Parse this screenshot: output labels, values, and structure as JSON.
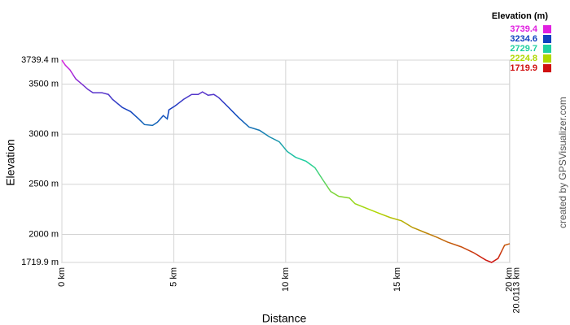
{
  "chart_data": {
    "type": "line",
    "x_label": "Distance",
    "y_label": "Elevation",
    "credit": "created by GPSVisualizer.com",
    "xlim": [
      0,
      20.0113
    ],
    "xticks": [
      {
        "value": 0,
        "label": "0 km"
      },
      {
        "value": 5,
        "label": "5 km"
      },
      {
        "value": 10,
        "label": "10 km"
      },
      {
        "value": 15,
        "label": "15 km"
      },
      {
        "value": 20,
        "label": "20 km"
      },
      {
        "value": 20.0113,
        "label": "20.0113 km"
      }
    ],
    "ylim": [
      1719.9,
      3739.4
    ],
    "yticks": [
      {
        "value": 1719.9,
        "label": "1719.9 m"
      },
      {
        "value": 2000,
        "label": "2000 m"
      },
      {
        "value": 2500,
        "label": "2500 m"
      },
      {
        "value": 3000,
        "label": "3000 m"
      },
      {
        "value": 3500,
        "label": "3500 m"
      },
      {
        "value": 3739.4,
        "label": "3739.4 m"
      }
    ],
    "grid": true,
    "legend": {
      "title": "Elevation (m)",
      "position": "top-right",
      "entries": [
        {
          "label": 3739.4,
          "color": "#e020e0"
        },
        {
          "label": 3234.6,
          "color": "#1040c0"
        },
        {
          "label": 2729.7,
          "color": "#20d0a0"
        },
        {
          "label": 2224.8,
          "color": "#b0d800"
        },
        {
          "label": 1719.9,
          "color": "#d01010"
        }
      ]
    },
    "series": [
      {
        "name": "Elevation",
        "x": [
          0,
          0.15,
          0.36,
          0.62,
          0.88,
          1.17,
          1.39,
          1.79,
          2.08,
          2.26,
          2.7,
          3.07,
          3.43,
          3.69,
          4.05,
          4.27,
          4.53,
          4.71,
          4.78,
          5.07,
          5.44,
          5.8,
          6.09,
          6.28,
          6.53,
          6.79,
          7.01,
          7.45,
          7.88,
          8.36,
          8.83,
          9.27,
          9.71,
          10.07,
          10.44,
          10.91,
          11.31,
          11.64,
          12.01,
          12.37,
          12.85,
          13.1,
          13.65,
          14.2,
          14.67,
          15.18,
          15.66,
          16.2,
          16.75,
          17.23,
          17.85,
          18.39,
          18.94,
          19.2,
          19.49,
          19.78,
          20.0113
        ],
        "values": [
          3739.4,
          3690,
          3642,
          3552,
          3503,
          3446,
          3414,
          3414,
          3397,
          3348,
          3267,
          3226,
          3153,
          3096,
          3088,
          3120,
          3186,
          3153,
          3243,
          3284,
          3348,
          3397,
          3397,
          3422,
          3389,
          3397,
          3365,
          3267,
          3169,
          3072,
          3039,
          2974,
          2925,
          2827,
          2770,
          2730,
          2665,
          2551,
          2428,
          2380,
          2363,
          2306,
          2257,
          2208,
          2168,
          2135,
          2070,
          2021,
          1972,
          1923,
          1875,
          1818,
          1744,
          1720,
          1760,
          1891,
          1907
        ]
      }
    ]
  }
}
